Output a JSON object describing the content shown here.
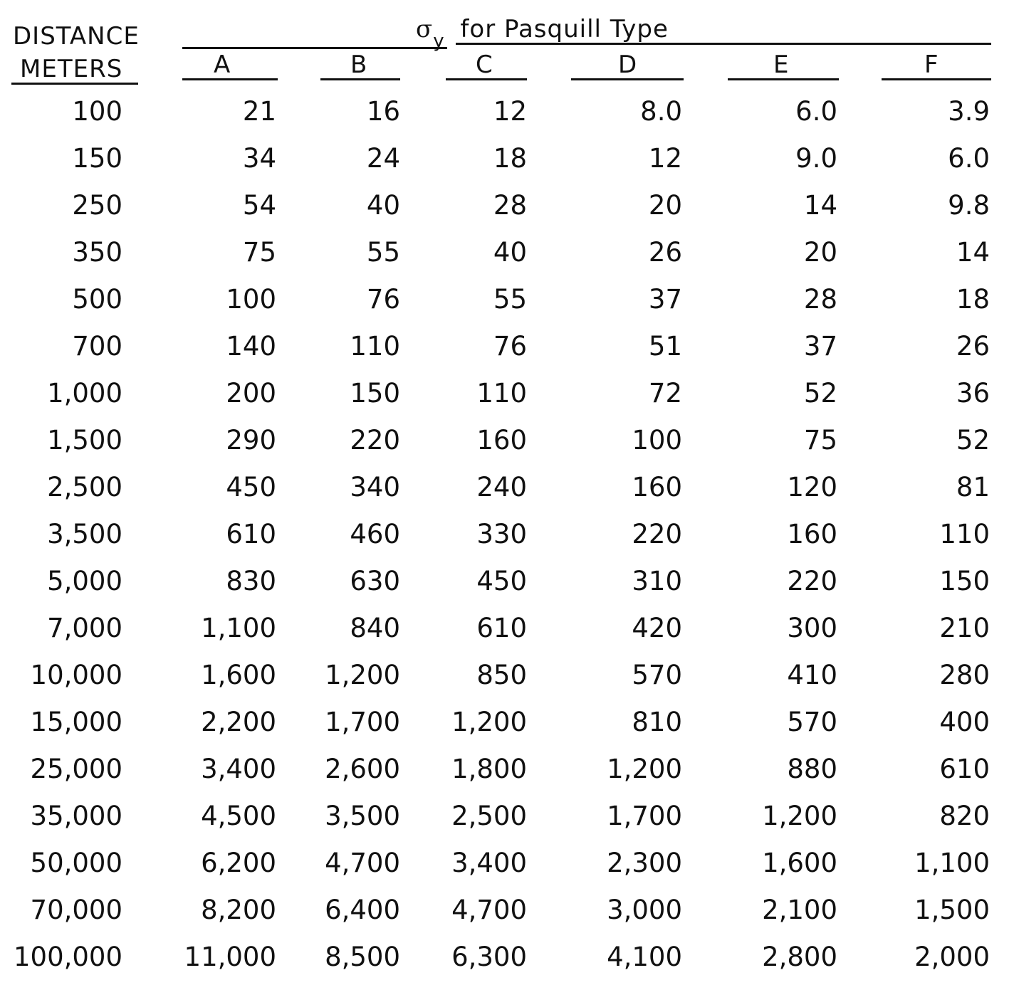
{
  "header": {
    "distance_line1": "DISTANCE",
    "distance_line2": "METERS",
    "sigma_symbol": "σ",
    "sigma_sub": "y",
    "sigma_title": "for Pasquill Type"
  },
  "columns": [
    "A",
    "B",
    "C",
    "D",
    "E",
    "F"
  ],
  "rows": [
    {
      "distance": "100",
      "values": [
        "21",
        "16",
        "12",
        "8.0",
        "6.0",
        "3.9"
      ]
    },
    {
      "distance": "150",
      "values": [
        "34",
        "24",
        "18",
        "12",
        "9.0",
        "6.0"
      ]
    },
    {
      "distance": "250",
      "values": [
        "54",
        "40",
        "28",
        "20",
        "14",
        "9.8"
      ]
    },
    {
      "distance": "350",
      "values": [
        "75",
        "55",
        "40",
        "26",
        "20",
        "14"
      ]
    },
    {
      "distance": "500",
      "values": [
        "100",
        "76",
        "55",
        "37",
        "28",
        "18"
      ]
    },
    {
      "distance": "700",
      "values": [
        "140",
        "110",
        "76",
        "51",
        "37",
        "26"
      ]
    },
    {
      "distance": "1,000",
      "values": [
        "200",
        "150",
        "110",
        "72",
        "52",
        "36"
      ]
    },
    {
      "distance": "1,500",
      "values": [
        "290",
        "220",
        "160",
        "100",
        "75",
        "52"
      ]
    },
    {
      "distance": "2,500",
      "values": [
        "450",
        "340",
        "240",
        "160",
        "120",
        "81"
      ]
    },
    {
      "distance": "3,500",
      "values": [
        "610",
        "460",
        "330",
        "220",
        "160",
        "110"
      ]
    },
    {
      "distance": "5,000",
      "values": [
        "830",
        "630",
        "450",
        "310",
        "220",
        "150"
      ]
    },
    {
      "distance": "7,000",
      "values": [
        "1,100",
        "840",
        "610",
        "420",
        "300",
        "210"
      ]
    },
    {
      "distance": "10,000",
      "values": [
        "1,600",
        "1,200",
        "850",
        "570",
        "410",
        "280"
      ]
    },
    {
      "distance": "15,000",
      "values": [
        "2,200",
        "1,700",
        "1,200",
        "810",
        "570",
        "400"
      ]
    },
    {
      "distance": "25,000",
      "values": [
        "3,400",
        "2,600",
        "1,800",
        "1,200",
        "880",
        "610"
      ]
    },
    {
      "distance": "35,000",
      "values": [
        "4,500",
        "3,500",
        "2,500",
        "1,700",
        "1,200",
        "820"
      ]
    },
    {
      "distance": "50,000",
      "values": [
        "6,200",
        "4,700",
        "3,400",
        "2,300",
        "1,600",
        "1,100"
      ]
    },
    {
      "distance": "70,000",
      "values": [
        "8,200",
        "6,400",
        "4,700",
        "3,000",
        "2,100",
        "1,500"
      ]
    },
    {
      "distance": "100,000",
      "values": [
        "11,000",
        "8,500",
        "6,300",
        "4,100",
        "2,800",
        "2,000"
      ]
    }
  ]
}
